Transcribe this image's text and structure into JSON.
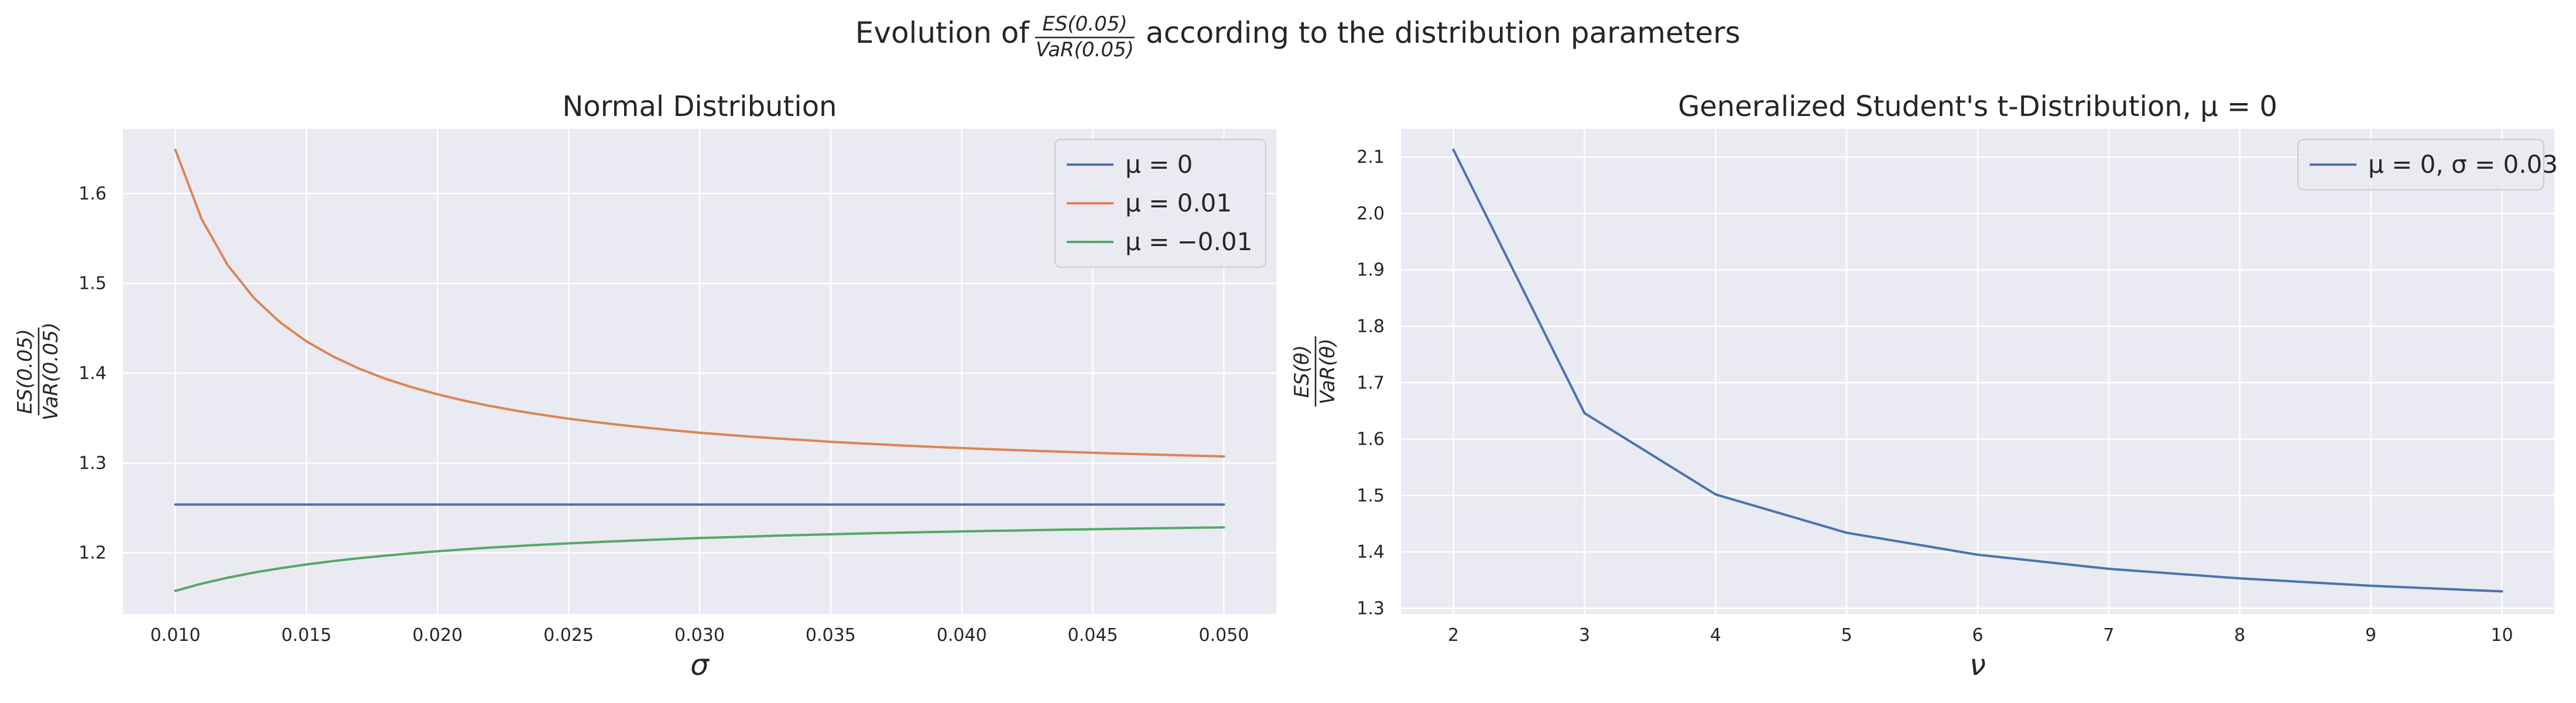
{
  "figure": {
    "suptitle_prefix": "Evolution of",
    "suptitle_frac_num": "ES(0.05)",
    "suptitle_frac_den": "VaR(0.05)",
    "suptitle_suffix": "according to the distribution parameters"
  },
  "chart_data": [
    {
      "type": "line",
      "title": "Normal Distribution",
      "xlabel": "σ",
      "ylabel_num": "ES(0.05)",
      "ylabel_den": "VaR(0.05)",
      "xlim": [
        0.008,
        0.052
      ],
      "ylim": [
        1.132,
        1.672
      ],
      "xticks": [
        0.01,
        0.015,
        0.02,
        0.025,
        0.03,
        0.035,
        0.04,
        0.045,
        0.05
      ],
      "xtick_labels": [
        "0.010",
        "0.015",
        "0.020",
        "0.025",
        "0.030",
        "0.035",
        "0.040",
        "0.045",
        "0.050"
      ],
      "yticks": [
        1.2,
        1.3,
        1.4,
        1.5,
        1.6
      ],
      "ytick_labels": [
        "1.2",
        "1.3",
        "1.4",
        "1.5",
        "1.6"
      ],
      "grid": true,
      "legend_position": "top-right",
      "x": [
        0.01,
        0.011,
        0.012,
        0.013,
        0.014,
        0.015,
        0.016,
        0.017,
        0.018,
        0.019,
        0.02,
        0.021,
        0.022,
        0.023,
        0.024,
        0.025,
        0.026,
        0.027,
        0.028,
        0.029,
        0.03,
        0.031,
        0.032,
        0.033,
        0.034,
        0.035,
        0.036,
        0.037,
        0.038,
        0.039,
        0.04,
        0.041,
        0.042,
        0.043,
        0.044,
        0.045,
        0.046,
        0.047,
        0.048,
        0.049,
        0.05
      ],
      "series": [
        {
          "name": "μ = 0",
          "legend_label": "μ = 0",
          "color": "#4c72b0",
          "values": [
            1.2538,
            1.2538,
            1.2538,
            1.2538,
            1.2538,
            1.2538,
            1.2538,
            1.2538,
            1.2538,
            1.2538,
            1.2538,
            1.2538,
            1.2538,
            1.2538,
            1.2538,
            1.2538,
            1.2538,
            1.2538,
            1.2538,
            1.2538,
            1.2538,
            1.2538,
            1.2538,
            1.2538,
            1.2538,
            1.2538,
            1.2538,
            1.2538,
            1.2538,
            1.2538,
            1.2538,
            1.2538,
            1.2538,
            1.2538,
            1.2538,
            1.2538,
            1.2538,
            1.2538,
            1.2538,
            1.2538,
            1.2538
          ]
        },
        {
          "name": "μ = 0.01",
          "legend_label": "μ = 0.01",
          "color": "#dd8452",
          "values": [
            1.6488,
            1.5717,
            1.5202,
            1.4837,
            1.4565,
            1.4355,
            1.4188,
            1.4052,
            1.394,
            1.3846,
            1.3765,
            1.3696,
            1.3636,
            1.3583,
            1.3536,
            1.3494,
            1.3457,
            1.3423,
            1.3392,
            1.3364,
            1.3338,
            1.3315,
            1.3293,
            1.3273,
            1.3255,
            1.3237,
            1.3221,
            1.3206,
            1.3192,
            1.3179,
            1.3167,
            1.3155,
            1.3144,
            1.3134,
            1.3124,
            1.3114,
            1.3105,
            1.3097,
            1.3089,
            1.3081,
            1.3074
          ]
        },
        {
          "name": "μ = -0.01",
          "legend_label": "μ = −0.01",
          "color": "#55a868",
          "values": [
            1.1577,
            1.1657,
            1.1724,
            1.1781,
            1.1829,
            1.1871,
            1.1908,
            1.194,
            1.1969,
            1.1995,
            1.2018,
            1.2039,
            1.2058,
            1.2075,
            1.2091,
            1.2106,
            1.2119,
            1.2132,
            1.2144,
            1.2155,
            1.2165,
            1.2174,
            1.2183,
            1.2192,
            1.22,
            1.2207,
            1.2214,
            1.2221,
            1.2227,
            1.2233,
            1.2239,
            1.2244,
            1.2249,
            1.2254,
            1.2259,
            1.2263,
            1.2268,
            1.2272,
            1.2276,
            1.228,
            1.2283
          ]
        }
      ]
    },
    {
      "type": "line",
      "title": "Generalized Student's t-Distribution, μ = 0",
      "xlabel": "ν",
      "ylabel_num": "ES(θ)",
      "ylabel_den": "VaR(θ)",
      "xlim": [
        1.6,
        10.4
      ],
      "ylim": [
        1.29,
        2.15
      ],
      "xticks": [
        2,
        3,
        4,
        5,
        6,
        7,
        8,
        9,
        10
      ],
      "xtick_labels": [
        "2",
        "3",
        "4",
        "5",
        "6",
        "7",
        "8",
        "9",
        "10"
      ],
      "yticks": [
        1.3,
        1.4,
        1.5,
        1.6,
        1.7,
        1.8,
        1.9,
        2.0,
        2.1
      ],
      "ytick_labels": [
        "1.3",
        "1.4",
        "1.5",
        "1.6",
        "1.7",
        "1.8",
        "1.9",
        "2.0",
        "2.1"
      ],
      "grid": true,
      "legend_position": "top-right",
      "x": [
        2,
        3,
        4,
        5,
        6,
        7,
        8,
        9,
        10
      ],
      "series": [
        {
          "name": "μ = 0, σ = 0.03",
          "legend_label": "μ = 0, σ = 0.03",
          "color": "#4c72b0",
          "values": [
            2.113,
            1.646,
            1.502,
            1.434,
            1.395,
            1.37,
            1.353,
            1.34,
            1.33
          ]
        }
      ]
    }
  ]
}
